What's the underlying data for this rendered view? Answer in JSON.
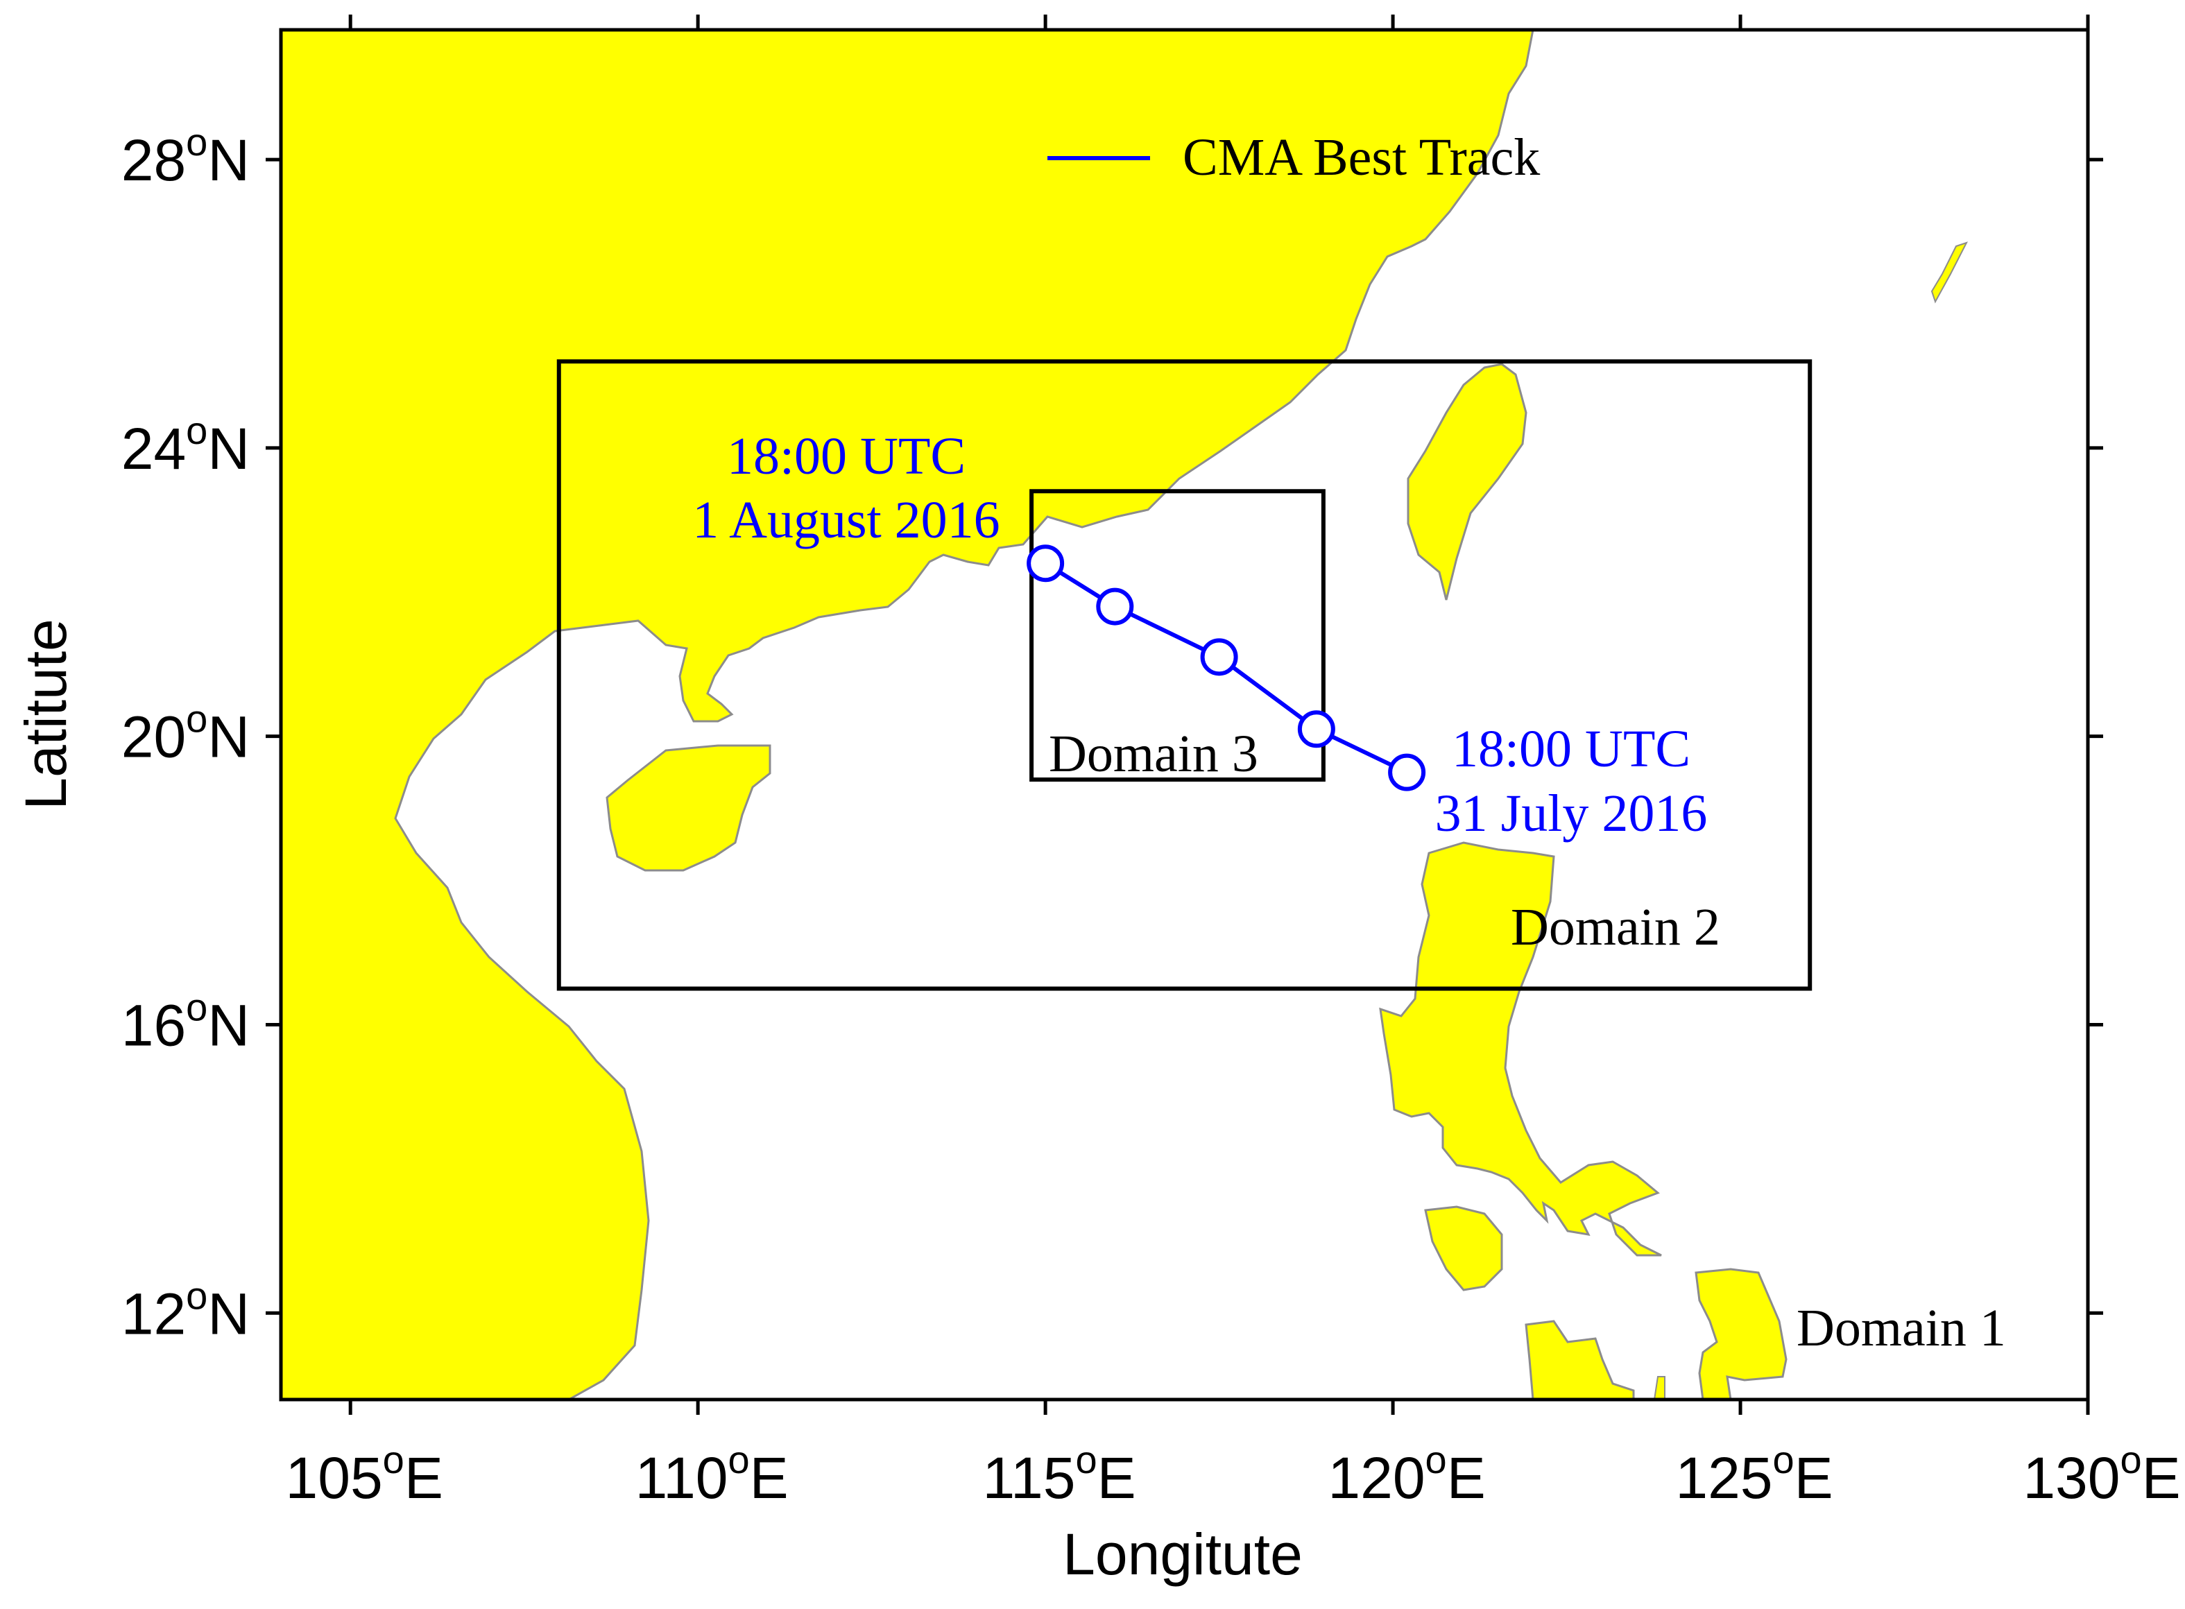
{
  "map": {
    "x_axis": {
      "title": "Longitute",
      "ticks": [
        {
          "value": 105,
          "deg": "105",
          "suffix": "E"
        },
        {
          "value": 110,
          "deg": "110",
          "suffix": "E"
        },
        {
          "value": 115,
          "deg": "115",
          "suffix": "E"
        },
        {
          "value": 120,
          "deg": "120",
          "suffix": "E"
        },
        {
          "value": 125,
          "deg": "125",
          "suffix": "E"
        },
        {
          "value": 130,
          "deg": "130",
          "suffix": "E"
        }
      ]
    },
    "y_axis": {
      "title": "Latitute",
      "ticks": [
        {
          "value": 28,
          "deg": "28",
          "suffix": "N"
        },
        {
          "value": 24,
          "deg": "24",
          "suffix": "N"
        },
        {
          "value": 20,
          "deg": "20",
          "suffix": "N"
        },
        {
          "value": 16,
          "deg": "16",
          "suffix": "N"
        },
        {
          "value": 12,
          "deg": "12",
          "suffix": "N"
        }
      ]
    },
    "extent": {
      "lon": [
        104,
        130
      ],
      "lat": [
        10.8,
        29.8
      ]
    },
    "degree_symbol": "o",
    "legend": {
      "label": "CMA Best Track",
      "position": "top-center"
    },
    "domains": [
      {
        "name": "Domain 1",
        "label": "Domain 1"
      },
      {
        "name": "Domain 2",
        "label": "Domain 2",
        "lon": [
          108,
          126
        ],
        "lat": [
          16.5,
          25.2
        ]
      },
      {
        "name": "Domain 3",
        "label": "Domain 3",
        "lon": [
          114.8,
          119
        ],
        "lat": [
          19.4,
          23.4
        ]
      }
    ],
    "track": {
      "points": [
        {
          "lon": 120.2,
          "lat": 19.5
        },
        {
          "lon": 118.9,
          "lat": 20.1
        },
        {
          "lon": 117.5,
          "lat": 21.1
        },
        {
          "lon": 116.0,
          "lat": 21.8
        },
        {
          "lon": 115.0,
          "lat": 22.4
        }
      ],
      "start_label": [
        "18:00 UTC",
        "31 July 2016"
      ],
      "end_label": [
        "18:00 UTC",
        "1 August 2016"
      ]
    },
    "colors": {
      "land": "#ffff00",
      "coast": "#8c8c8c",
      "track": "#0000ff",
      "frame": "#000000"
    }
  }
}
